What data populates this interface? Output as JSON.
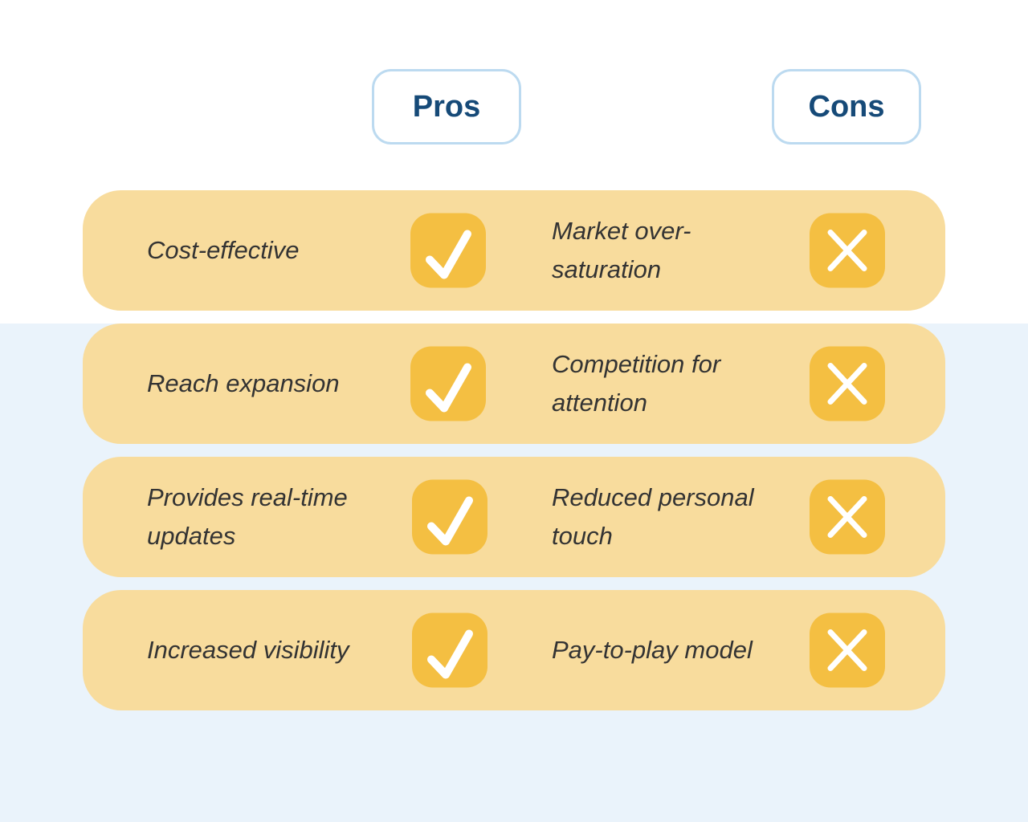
{
  "headers": {
    "pros": "Pros",
    "cons": "Cons"
  },
  "colors": {
    "row": "#f8dc9d",
    "badge": "#f4bf42",
    "header_text": "#164a78",
    "header_border": "#bcdaf0",
    "lower_bg": "#eaf3fb"
  },
  "rows": [
    {
      "pro": "Cost-effective",
      "con": "Market over-saturation",
      "pro_icon": "check-icon",
      "con_icon": "x-icon"
    },
    {
      "pro": "Reach expansion",
      "con": "Competition for attention",
      "pro_icon": "check-icon",
      "con_icon": "x-icon"
    },
    {
      "pro": "Provides real-time updates",
      "con": "Reduced personal touch",
      "pro_icon": "check-icon",
      "con_icon": "x-icon"
    },
    {
      "pro": "Increased visibility",
      "con": "Pay-to-play model",
      "pro_icon": "check-icon",
      "con_icon": "x-icon"
    }
  ]
}
